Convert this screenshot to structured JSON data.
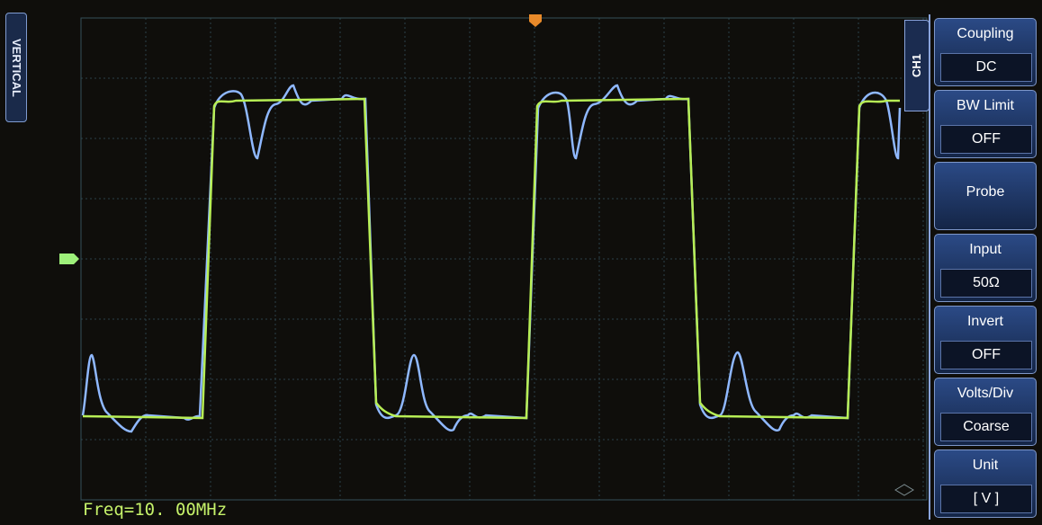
{
  "side_label": "VERTICAL",
  "channel": "CH1",
  "menu": [
    {
      "label": "Coupling",
      "value": "DC"
    },
    {
      "label": "BW Limit",
      "value": "OFF"
    },
    {
      "label": "Probe"
    },
    {
      "label": "Input",
      "value": "50Ω"
    },
    {
      "label": "Invert",
      "value": "OFF"
    },
    {
      "label": "Volts/Div",
      "value": "Coarse"
    },
    {
      "label": "Unit",
      "value": "[ V ]"
    }
  ],
  "frequency": "Freq=10. 00MHz"
}
